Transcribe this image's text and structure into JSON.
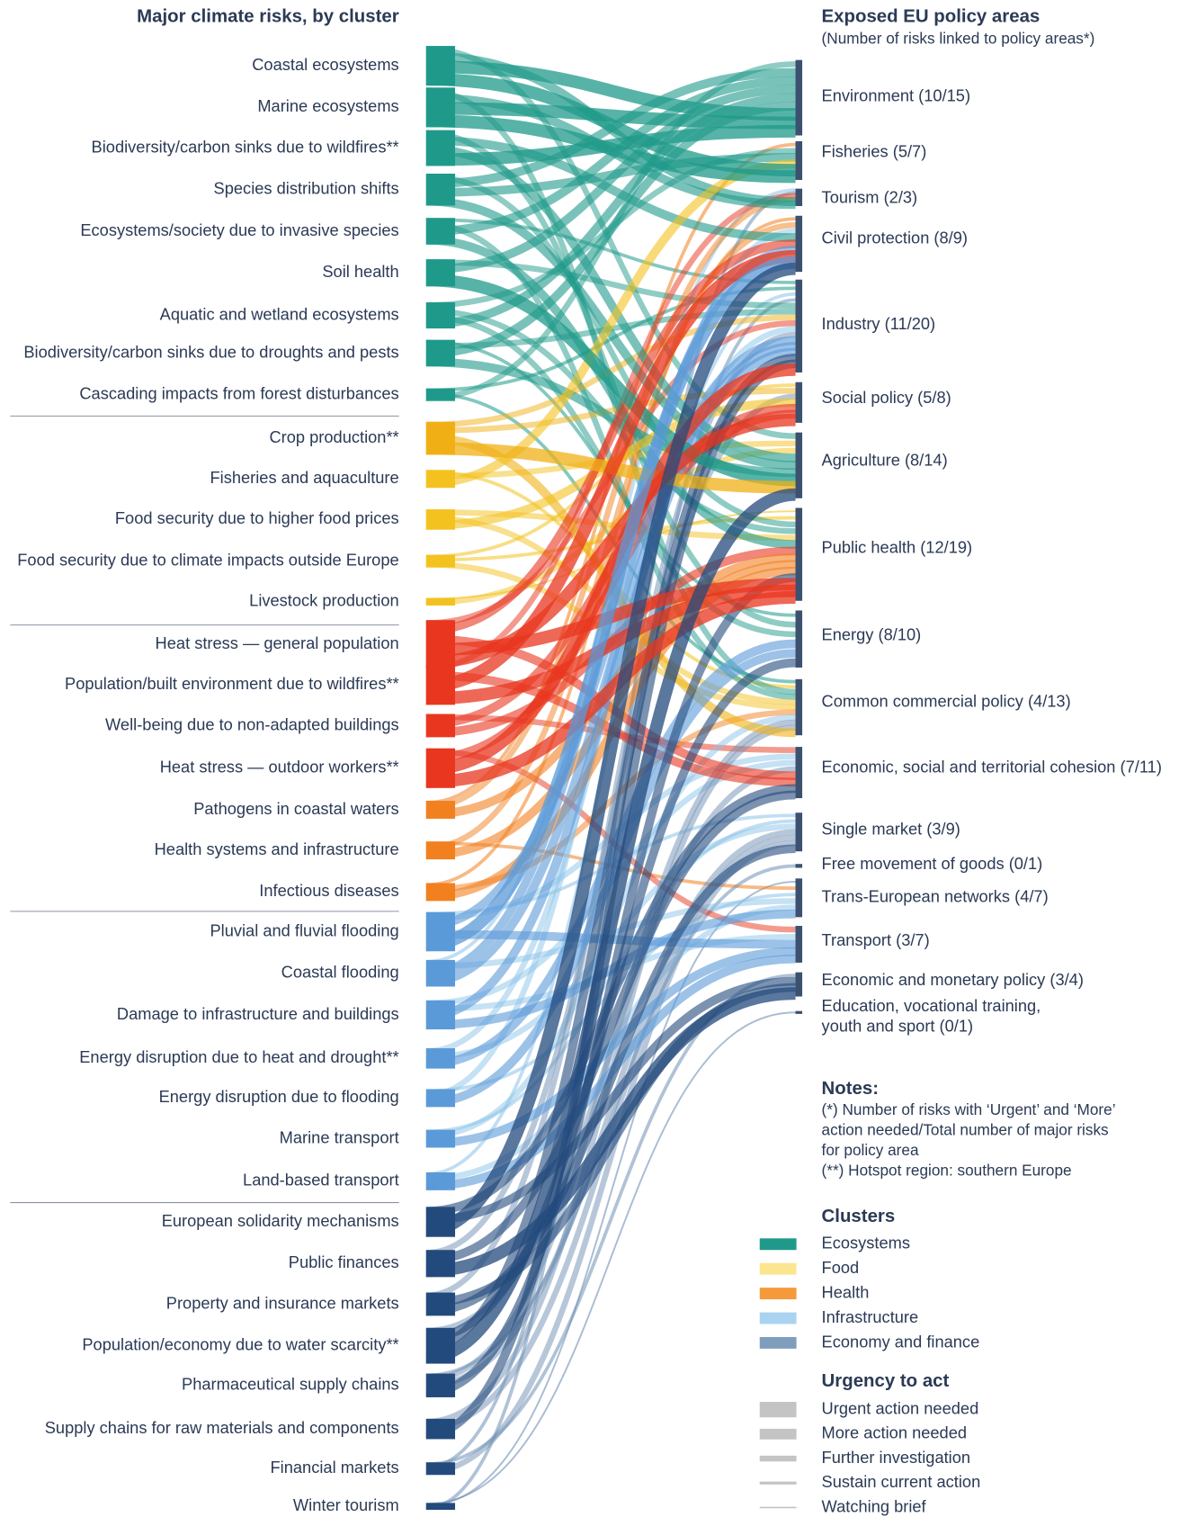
{
  "left_title": "Major climate risks, by cluster",
  "right_title": "Exposed EU policy areas",
  "right_subtitle": "(Number of risks linked to policy areas*)",
  "clusters": [
    {
      "name": "Ecosystems",
      "color": "#1f9a8a",
      "risks": [
        "Coastal ecosystems",
        "Marine ecosystems",
        "Biodiversity/carbon sinks due to wildfires**",
        "Species distribution shifts",
        "Ecosystems/society due to invasive species",
        "Soil health",
        "Aquatic and wetland ecosystems",
        "Biodiversity/carbon sinks due to droughts and pests",
        "Cascading impacts from forest disturbances"
      ]
    },
    {
      "name": "Food",
      "color": "#f3c21f",
      "risks": [
        "Crop production**",
        "Fisheries and aquaculture",
        "Food security due to higher food prices",
        "Food security due to climate impacts outside Europe",
        "Livestock production"
      ]
    },
    {
      "name": "Health",
      "color": "#f2801f",
      "risks": [
        "Heat stress — general population",
        "Population/built environment due to wildfires**",
        "Well-being due to non-adapted buildings",
        "Heat stress — outdoor workers**",
        "Pathogens in coastal waters",
        "Health systems and infrastructure",
        "Infectious diseases"
      ]
    },
    {
      "name": "Infrastructure",
      "color": "#5b9ad8",
      "risks": [
        "Pluvial and fluvial flooding",
        "Coastal flooding",
        "Damage to infrastructure and buildings",
        "Energy disruption due to heat and drought**",
        "Energy disruption due to flooding",
        "Marine transport",
        "Land-based transport"
      ]
    },
    {
      "name": "Economy and finance",
      "color": "#234a7c",
      "risks": [
        "European solidarity mechanisms",
        "Public finances",
        "Property and insurance markets",
        "Population/economy due to water scarcity**",
        "Pharmaceutical supply chains",
        "Supply chains for raw materials and components",
        "Financial markets",
        "Winter tourism"
      ]
    }
  ],
  "policy_areas": [
    "Environment (10/15)",
    "Fisheries (5/7)",
    "Tourism (2/3)",
    "Civil protection (8/9)",
    "Industry (11/20)",
    "Social policy (5/8)",
    "Agriculture (8/14)",
    "Public health (12/19)",
    "Energy (8/10)",
    "Common commercial policy (4/13)",
    "Economic, social and territorial cohesion (7/11)",
    "Single market (3/9)",
    "Free movement of goods (0/1)",
    "Trans-European networks (4/7)",
    "Transport (3/7)",
    "Economic and monetary policy (3/4)",
    [
      "Education, vocational training,",
      "youth and sport (0/1)"
    ]
  ],
  "links": [
    [
      0,
      0,
      0
    ],
    [
      0,
      1,
      0
    ],
    [
      0,
      2,
      1
    ],
    [
      0,
      6,
      2
    ],
    [
      1,
      0,
      0
    ],
    [
      1,
      1,
      0
    ],
    [
      1,
      2,
      1
    ],
    [
      1,
      9,
      2
    ],
    [
      2,
      0,
      0
    ],
    [
      2,
      3,
      1
    ],
    [
      2,
      6,
      1
    ],
    [
      2,
      8,
      2
    ],
    [
      3,
      0,
      1
    ],
    [
      3,
      1,
      1
    ],
    [
      3,
      6,
      1
    ],
    [
      3,
      7,
      2
    ],
    [
      4,
      0,
      1
    ],
    [
      4,
      7,
      1
    ],
    [
      4,
      9,
      2
    ],
    [
      4,
      4,
      3
    ],
    [
      5,
      0,
      1
    ],
    [
      5,
      6,
      0
    ],
    [
      5,
      4,
      2
    ],
    [
      6,
      0,
      1
    ],
    [
      6,
      1,
      2
    ],
    [
      6,
      7,
      2
    ],
    [
      6,
      8,
      2
    ],
    [
      7,
      0,
      1
    ],
    [
      7,
      6,
      1
    ],
    [
      7,
      4,
      2
    ],
    [
      7,
      8,
      3
    ],
    [
      8,
      0,
      2
    ],
    [
      8,
      4,
      3
    ],
    [
      8,
      9,
      3
    ],
    [
      9,
      6,
      0
    ],
    [
      9,
      9,
      1
    ],
    [
      9,
      4,
      2
    ],
    [
      9,
      5,
      2
    ],
    [
      10,
      1,
      1
    ],
    [
      10,
      6,
      2
    ],
    [
      10,
      9,
      3
    ],
    [
      11,
      5,
      1
    ],
    [
      11,
      7,
      2
    ],
    [
      11,
      9,
      2
    ],
    [
      12,
      9,
      2
    ],
    [
      12,
      5,
      3
    ],
    [
      12,
      7,
      3
    ],
    [
      13,
      6,
      2
    ],
    [
      13,
      7,
      4
    ],
    [
      14,
      7,
      0
    ],
    [
      14,
      5,
      0
    ],
    [
      14,
      3,
      1
    ],
    [
      14,
      10,
      1
    ],
    [
      14,
      4,
      2
    ],
    [
      15,
      3,
      0
    ],
    [
      15,
      7,
      0
    ],
    [
      15,
      10,
      1
    ],
    [
      15,
      2,
      2
    ],
    [
      16,
      5,
      1
    ],
    [
      16,
      7,
      1
    ],
    [
      16,
      10,
      2
    ],
    [
      17,
      4,
      0
    ],
    [
      17,
      7,
      0
    ],
    [
      17,
      5,
      1
    ],
    [
      17,
      14,
      2
    ],
    [
      18,
      7,
      1
    ],
    [
      18,
      2,
      2
    ],
    [
      18,
      1,
      3
    ],
    [
      19,
      7,
      1
    ],
    [
      19,
      3,
      2
    ],
    [
      19,
      13,
      3
    ],
    [
      20,
      7,
      1
    ],
    [
      20,
      9,
      2
    ],
    [
      20,
      3,
      3
    ],
    [
      21,
      3,
      0
    ],
    [
      21,
      4,
      1
    ],
    [
      21,
      14,
      1
    ],
    [
      21,
      10,
      2
    ],
    [
      21,
      11,
      3
    ],
    [
      22,
      3,
      1
    ],
    [
      22,
      4,
      1
    ],
    [
      22,
      13,
      2
    ],
    [
      22,
      2,
      3
    ],
    [
      23,
      4,
      1
    ],
    [
      23,
      13,
      1
    ],
    [
      23,
      10,
      2
    ],
    [
      23,
      14,
      2
    ],
    [
      24,
      8,
      1
    ],
    [
      24,
      4,
      2
    ],
    [
      24,
      11,
      2
    ],
    [
      25,
      8,
      1
    ],
    [
      25,
      3,
      2
    ],
    [
      25,
      13,
      3
    ],
    [
      26,
      14,
      1
    ],
    [
      26,
      9,
      2
    ],
    [
      26,
      11,
      3
    ],
    [
      27,
      14,
      1
    ],
    [
      27,
      13,
      2
    ],
    [
      27,
      4,
      3
    ],
    [
      28,
      3,
      0
    ],
    [
      28,
      10,
      1
    ],
    [
      28,
      15,
      1
    ],
    [
      29,
      15,
      0
    ],
    [
      29,
      10,
      1
    ],
    [
      29,
      5,
      2
    ],
    [
      30,
      15,
      1
    ],
    [
      30,
      11,
      1
    ],
    [
      30,
      4,
      2
    ],
    [
      31,
      6,
      0
    ],
    [
      31,
      8,
      1
    ],
    [
      31,
      4,
      1
    ],
    [
      31,
      10,
      2
    ],
    [
      32,
      7,
      1
    ],
    [
      32,
      9,
      2
    ],
    [
      32,
      11,
      2
    ],
    [
      32,
      12,
      3
    ],
    [
      33,
      4,
      1
    ],
    [
      33,
      9,
      2
    ],
    [
      33,
      11,
      2
    ],
    [
      34,
      11,
      2
    ],
    [
      34,
      15,
      3
    ],
    [
      34,
      4,
      3
    ],
    [
      35,
      2,
      3
    ],
    [
      35,
      16,
      4
    ],
    [
      35,
      13,
      4
    ]
  ],
  "notes": {
    "title": "Notes:",
    "lines": [
      "(*) Number of risks with ‘Urgent’ and ‘More’",
      "action needed/Total number of major risks",
      "for policy area",
      "(**) Hotspot region: southern Europe"
    ]
  },
  "legend": {
    "clusters_title": "Clusters",
    "urgency_title": "Urgency to act",
    "urgency": [
      "Urgent action needed",
      "More action needed",
      "Further investigation",
      "Sustain current action",
      "Watching brief"
    ]
  }
}
